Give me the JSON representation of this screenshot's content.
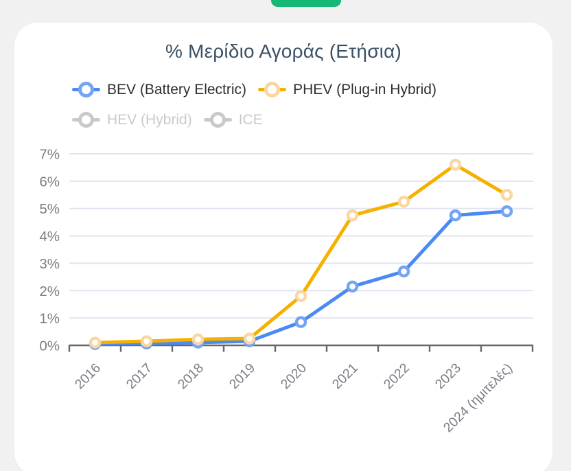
{
  "page": {
    "background_color": "#f1f1f2",
    "top_pill": {
      "color": "#16b777"
    }
  },
  "chart_card": {
    "title": "% Μερίδιο Αγοράς (Ετήσια)",
    "title_color": "#3b5166"
  },
  "legend": {
    "text_color": "#2f2f2f",
    "disabled_text_color": "#c9c9c9",
    "rows": [
      [
        {
          "id": "bev",
          "label": "BEV (Battery Electric)",
          "line_color": "#4a8af4",
          "ring_color": "#74a4f2",
          "enabled": true
        },
        {
          "id": "phev",
          "label": "PHEV (Plug-in Hybrid)",
          "line_color": "#f6b000",
          "ring_color": "#f8d7a2",
          "enabled": true
        }
      ],
      [
        {
          "id": "hev",
          "label": "HEV (Hybrid)",
          "line_color": "#c9c9c9",
          "ring_color": "#c9c9c9",
          "enabled": false
        },
        {
          "id": "ice",
          "label": "ICE",
          "line_color": "#c9c9c9",
          "ring_color": "#c9c9c9",
          "enabled": false
        }
      ]
    ]
  },
  "chart_data": {
    "type": "line",
    "title": "% Μερίδιο Αγοράς (Ετήσια)",
    "categories": [
      "2016",
      "2017",
      "2018",
      "2019",
      "2020",
      "2021",
      "2022",
      "2023",
      "2024 (ημιτελές)"
    ],
    "series": [
      {
        "name": "BEV (Battery Electric)",
        "values": [
          0.05,
          0.07,
          0.1,
          0.15,
          0.85,
          2.15,
          2.7,
          4.75,
          4.9
        ],
        "color": "#4a8af4",
        "marker_ring": "#74a4f2",
        "visible": true
      },
      {
        "name": "PHEV (Plug-in Hybrid)",
        "values": [
          0.1,
          0.15,
          0.22,
          0.25,
          1.8,
          4.75,
          5.25,
          6.6,
          5.5
        ],
        "color": "#f6b000",
        "marker_ring": "#f8d7a2",
        "visible": true
      },
      {
        "name": "HEV (Hybrid)",
        "values": null,
        "color": "#c9c9c9",
        "visible": false
      },
      {
        "name": "ICE",
        "values": null,
        "color": "#c9c9c9",
        "visible": false
      }
    ],
    "ylim": [
      0,
      7
    ],
    "ytick_labels": [
      "0%",
      "1%",
      "2%",
      "3%",
      "4%",
      "5%",
      "6%",
      "7%"
    ],
    "grid": true,
    "legend_position": "top",
    "x_tick_rotation": -45,
    "axis_color": "#66666e",
    "grid_color": "#e2e4f0",
    "tick_label_color": "#7c7c86"
  }
}
